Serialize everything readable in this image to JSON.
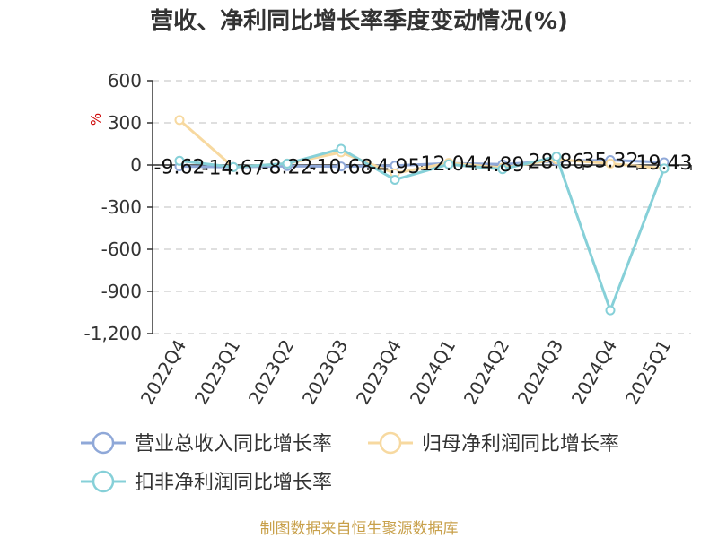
{
  "chart_data": {
    "type": "line",
    "title": "营收、净利同比增长率季度变动情况(%)",
    "ylabel": "%",
    "ylim": [
      -1200,
      600
    ],
    "yticks": [
      600,
      300,
      0,
      -300,
      -600,
      -900,
      -1200
    ],
    "ytick_labels": [
      "600",
      "300",
      "0",
      "-300",
      "-600",
      "-900",
      "-1,200"
    ],
    "grid": true,
    "legend_position": "bottom",
    "categories": [
      "2022Q4",
      "2023Q1",
      "2023Q2",
      "2023Q3",
      "2023Q4",
      "2024Q1",
      "2024Q2",
      "2024Q3",
      "2024Q4",
      "2025Q1"
    ],
    "series": [
      {
        "name": "营业总收入同比增长率",
        "color": "#8fa8d8",
        "values": [
          -9.62,
          -14.67,
          -8.22,
          -10.68,
          -4.95,
          12.04,
          4.89,
          28.86,
          35.32,
          19.43
        ],
        "labels": [
          "-9.62",
          "-14.67",
          "-8.22",
          "-10.68",
          "-4.95",
          "12.04",
          "4.89",
          "28.86",
          "35.32",
          "19.43"
        ]
      },
      {
        "name": "归母净利润同比增长率",
        "color": "#f7d9a0",
        "values": [
          320,
          -15,
          10,
          90,
          -60,
          15,
          -20,
          40,
          10,
          -25
        ]
      },
      {
        "name": "扣非净利润同比增长率",
        "color": "#86d0d8",
        "values": [
          30,
          -15,
          10,
          115,
          -105,
          5,
          -30,
          60,
          -1035,
          -25
        ]
      }
    ]
  },
  "source": "制图数据来自恒生聚源数据库"
}
